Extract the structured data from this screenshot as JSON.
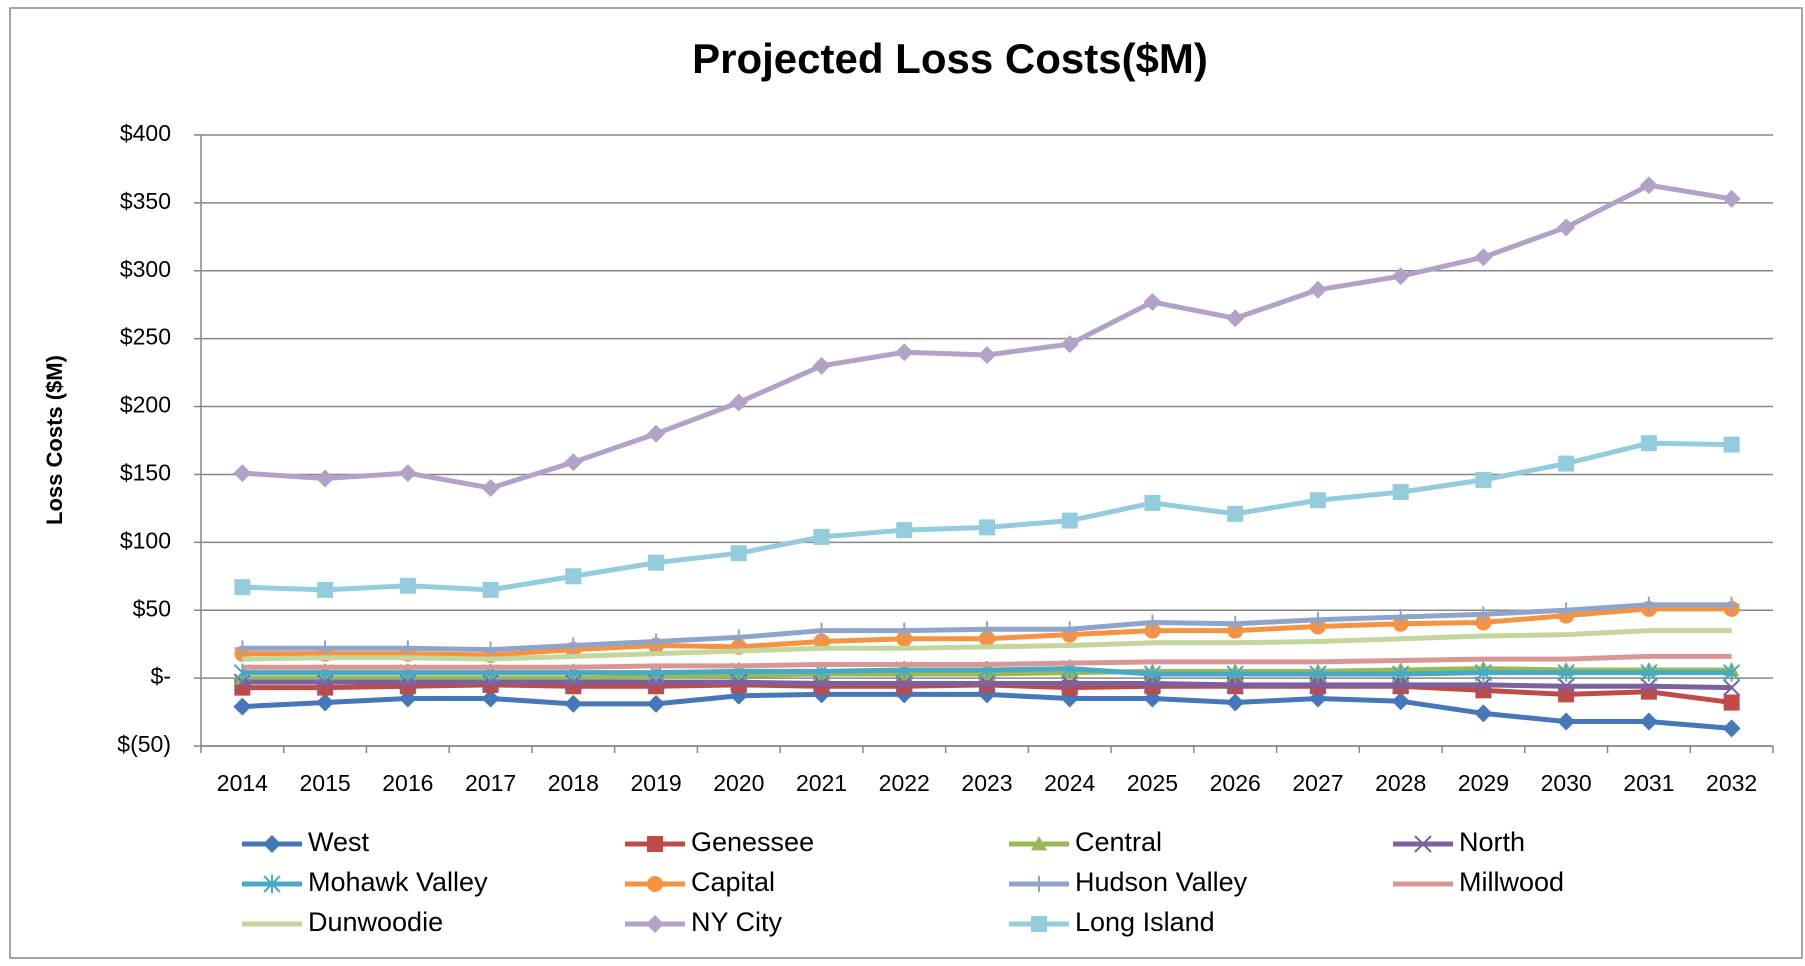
{
  "chart_data": {
    "type": "line",
    "title": "Projected Loss Costs($M)",
    "y_label": "Loss Costs ($M)",
    "categories": [
      "2014",
      "2015",
      "2016",
      "2017",
      "2018",
      "2019",
      "2020",
      "2021",
      "2022",
      "2023",
      "2024",
      "2025",
      "2026",
      "2027",
      "2028",
      "2029",
      "2030",
      "2031",
      "2032"
    ],
    "ylim": [
      -50,
      400
    ],
    "yticks": [
      {
        "value": -50,
        "label": "$(50)"
      },
      {
        "value": 0,
        "label": "$-"
      },
      {
        "value": 50,
        "label": "$50"
      },
      {
        "value": 100,
        "label": "$100"
      },
      {
        "value": 150,
        "label": "$150"
      },
      {
        "value": 200,
        "label": "$200"
      },
      {
        "value": 250,
        "label": "$250"
      },
      {
        "value": 300,
        "label": "$300"
      },
      {
        "value": 350,
        "label": "$350"
      },
      {
        "value": 400,
        "label": "$400"
      }
    ],
    "grid": true,
    "legend": "bottom",
    "series": [
      {
        "name": "West",
        "color": "#4677b8",
        "marker": "diamond",
        "values": [
          -21,
          -18,
          -15,
          -15,
          -19,
          -19,
          -13,
          -12,
          -12,
          -12,
          -15,
          -15,
          -18,
          -15,
          -17,
          -26,
          -32,
          -32,
          -37
        ]
      },
      {
        "name": "Genessee",
        "color": "#be4b48",
        "marker": "square",
        "values": [
          -7,
          -7,
          -6,
          -5,
          -6,
          -6,
          -5,
          -6,
          -6,
          -5,
          -7,
          -6,
          -6,
          -6,
          -6,
          -9,
          -12,
          -10,
          -18
        ]
      },
      {
        "name": "Central",
        "color": "#98b954",
        "marker": "triangle",
        "values": [
          0,
          0,
          0,
          0,
          0,
          1,
          2,
          3,
          3,
          3,
          4,
          5,
          5,
          5,
          6,
          7,
          6,
          6,
          6
        ]
      },
      {
        "name": "North",
        "color": "#7d60a0",
        "marker": "x",
        "values": [
          -3,
          -3,
          -3,
          -3,
          -3,
          -3,
          -3,
          -4,
          -4,
          -4,
          -4,
          -4,
          -5,
          -5,
          -5,
          -5,
          -6,
          -6,
          -7
        ]
      },
      {
        "name": "Mohawk Valley",
        "color": "#46aac5",
        "marker": "star",
        "values": [
          4,
          4,
          4,
          4,
          4,
          4,
          5,
          5,
          6,
          6,
          7,
          3,
          3,
          3,
          3,
          4,
          4,
          4,
          4
        ]
      },
      {
        "name": "Capital",
        "color": "#f69240",
        "marker": "circle",
        "values": [
          18,
          18,
          18,
          17,
          21,
          24,
          23,
          27,
          29,
          29,
          32,
          35,
          35,
          38,
          40,
          41,
          46,
          51,
          51
        ]
      },
      {
        "name": "Hudson Valley",
        "color": "#8ea5cb",
        "marker": "plus",
        "values": [
          22,
          22,
          22,
          21,
          24,
          27,
          30,
          35,
          35,
          36,
          36,
          41,
          40,
          43,
          45,
          47,
          50,
          54,
          54
        ]
      },
      {
        "name": "Millwood",
        "color": "#d99694",
        "marker": "none",
        "values": [
          8,
          8,
          8,
          8,
          8,
          9,
          9,
          10,
          10,
          10,
          11,
          12,
          12,
          12,
          13,
          14,
          14,
          16,
          16
        ]
      },
      {
        "name": "Dunwoodie",
        "color": "#c3d69b",
        "marker": "none",
        "values": [
          14,
          15,
          15,
          14,
          16,
          18,
          20,
          22,
          22,
          23,
          24,
          26,
          26,
          27,
          29,
          31,
          32,
          35,
          35
        ]
      },
      {
        "name": "NY City",
        "color": "#b3a2c7",
        "marker": "diamond",
        "values": [
          151,
          147,
          151,
          140,
          159,
          180,
          203,
          230,
          240,
          238,
          246,
          277,
          265,
          286,
          296,
          310,
          332,
          363,
          353
        ]
      },
      {
        "name": "Long Island",
        "color": "#93cddd",
        "marker": "square",
        "values": [
          67,
          65,
          68,
          65,
          75,
          85,
          92,
          104,
          109,
          111,
          116,
          129,
          121,
          131,
          137,
          146,
          158,
          173,
          172
        ]
      }
    ]
  }
}
